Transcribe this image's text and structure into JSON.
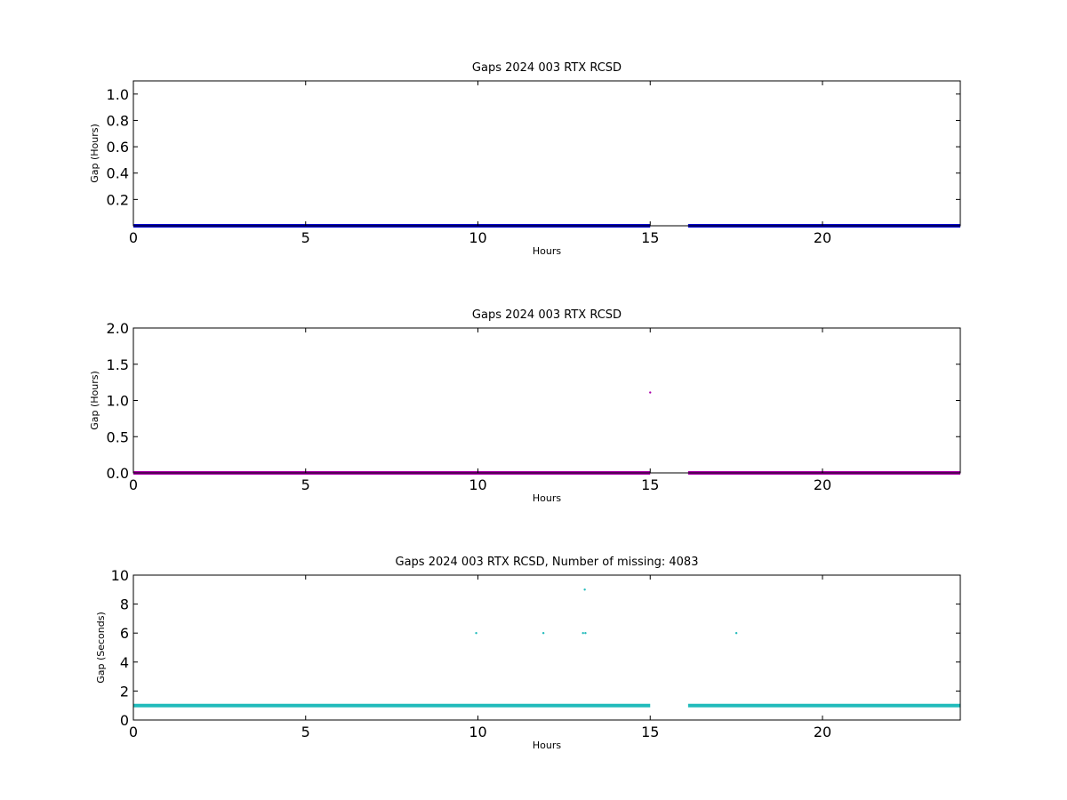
{
  "chart_data": [
    {
      "type": "scatter",
      "title": "Gaps 2024 003 RTX  RCSD",
      "xlabel": "Hours",
      "ylabel": "Gap (Hours)",
      "xlim": [
        0,
        24
      ],
      "ylim": [
        0,
        1.1
      ],
      "xticks": [
        0,
        5,
        10,
        15,
        20
      ],
      "yticks": [
        0.2,
        0.4,
        0.6,
        0.8,
        1.0
      ],
      "ytick_labels": [
        "0.2",
        "0.4",
        "0.6",
        "0.8",
        "1.0"
      ],
      "color": "#0000cc",
      "series": [
        {
          "segments": [
            {
              "x": [
                0,
                15.0
              ],
              "y": 0.0003
            },
            {
              "x": [
                16.1,
                24
              ],
              "y": 0.0003
            }
          ],
          "points": []
        }
      ]
    },
    {
      "type": "scatter",
      "title": "Gaps 2024 003 RTX  RCSD",
      "xlabel": "Hours",
      "ylabel": "Gap (Hours)",
      "xlim": [
        0,
        24
      ],
      "ylim": [
        0,
        2.0
      ],
      "xticks": [
        0,
        5,
        10,
        15,
        20
      ],
      "yticks": [
        0.0,
        0.5,
        1.0,
        1.5,
        2.0
      ],
      "ytick_labels": [
        "0.0",
        "0.5",
        "1.0",
        "1.5",
        "2.0"
      ],
      "color": "#aa00aa",
      "series": [
        {
          "segments": [
            {
              "x": [
                0,
                15.0
              ],
              "y": 0.0003
            },
            {
              "x": [
                16.1,
                24
              ],
              "y": 0.0003
            }
          ],
          "points": [
            {
              "x": 15.0,
              "y": 1.11
            }
          ]
        }
      ]
    },
    {
      "type": "scatter",
      "title": "Gaps 2024 003 RTX  RCSD, Number of missing: 4083",
      "xlabel": "Hours",
      "ylabel": "Gap (Seconds)",
      "xlim": [
        0,
        24
      ],
      "ylim": [
        0,
        10
      ],
      "xticks": [
        0,
        5,
        10,
        15,
        20
      ],
      "yticks": [
        0,
        2,
        4,
        6,
        8,
        10
      ],
      "ytick_labels": [
        "0",
        "2",
        "4",
        "6",
        "8",
        "10"
      ],
      "color": "#22bbbb",
      "series": [
        {
          "segments": [
            {
              "x": [
                0,
                15.0
              ],
              "y": 1
            },
            {
              "x": [
                16.1,
                24
              ],
              "y": 1
            }
          ],
          "points": [
            {
              "x": 9.95,
              "y": 6
            },
            {
              "x": 11.9,
              "y": 6
            },
            {
              "x": 13.05,
              "y": 6
            },
            {
              "x": 13.12,
              "y": 6
            },
            {
              "x": 13.1,
              "y": 9
            },
            {
              "x": 17.5,
              "y": 6
            }
          ]
        }
      ]
    }
  ]
}
